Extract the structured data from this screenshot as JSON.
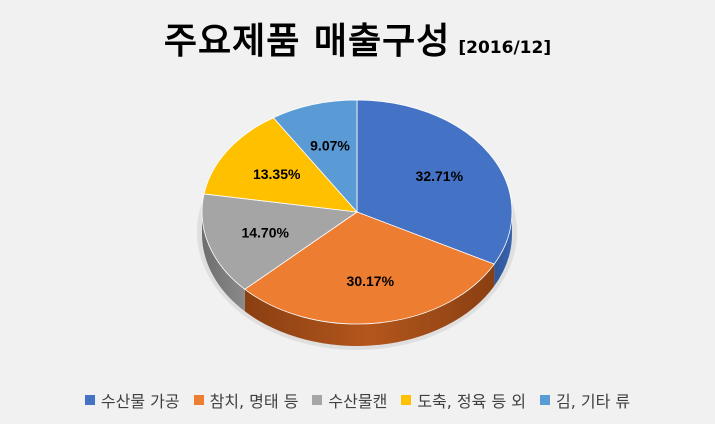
{
  "chart_data": {
    "type": "pie",
    "title": "주요제품 매출구성",
    "subtitle": "[2016/12]",
    "categories": [
      "수산물 가공",
      "참치, 명태 등",
      "수산물캔",
      "도축, 정육 등 외",
      "김, 기타 류"
    ],
    "values": [
      32.71,
      30.17,
      14.7,
      13.35,
      9.07
    ],
    "labels": [
      "32.71%",
      "30.17%",
      "14.70%",
      "13.35%",
      "9.07%"
    ],
    "colors": [
      "#4472C4",
      "#ED7D31",
      "#A5A5A5",
      "#FFC000",
      "#5B9BD5"
    ],
    "legend_position": "bottom",
    "style": "3d"
  }
}
